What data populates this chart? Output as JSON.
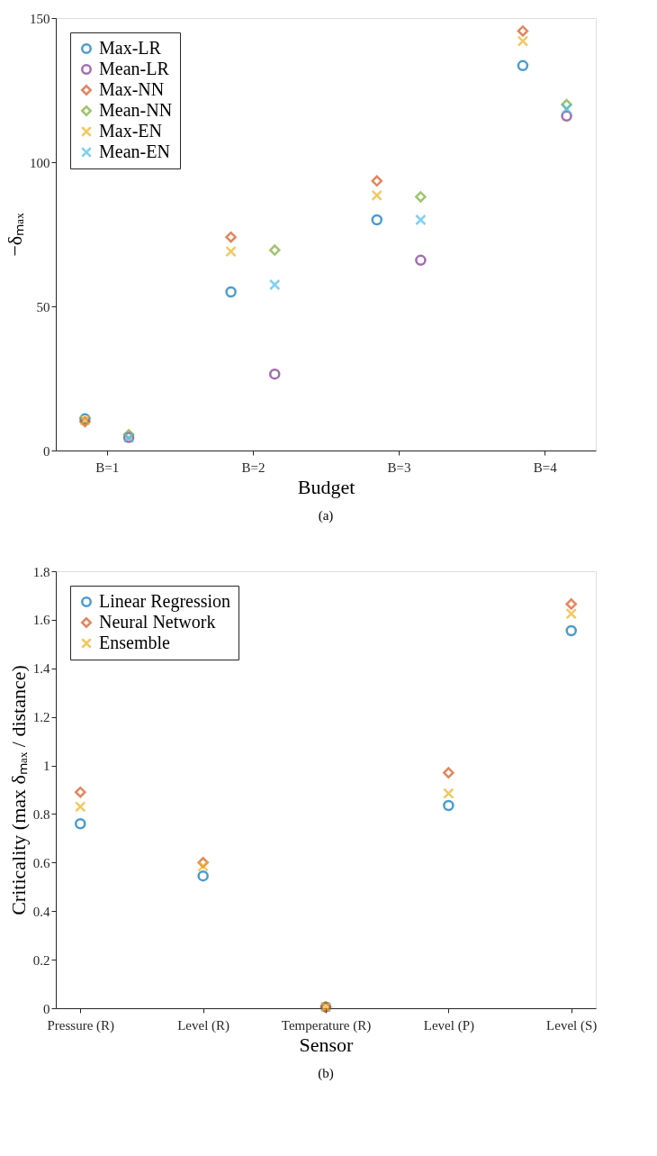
{
  "chart_data": [
    {
      "type": "scatter",
      "xlabel": "Budget",
      "ylabel": "−δₘₐₓ",
      "annotations": [
        "(a)"
      ],
      "categories": [
        "B=1",
        "B=2",
        "B=3",
        "B=4"
      ],
      "ylim": [
        0,
        150
      ],
      "yticks": [
        0,
        50,
        100,
        150
      ],
      "grid": false,
      "legend": "top left",
      "series": [
        {
          "name": "Max-LR",
          "color": "#0072bd",
          "marker": "circle",
          "values": [
            11,
            55,
            80,
            133.5
          ]
        },
        {
          "name": "Mean-LR",
          "color": "#7e2f8e",
          "marker": "circle",
          "values": [
            4.5,
            26.5,
            66,
            116
          ]
        },
        {
          "name": "Max-NN",
          "color": "#d95319",
          "marker": "diamond",
          "values": [
            10,
            74,
            93.5,
            145.5
          ]
        },
        {
          "name": "Mean-NN",
          "color": "#77ac30",
          "marker": "diamond",
          "values": [
            5.5,
            69.5,
            88,
            120
          ]
        },
        {
          "name": "Max-EN",
          "color": "#edb120",
          "marker": "cross",
          "values": [
            10.5,
            69,
            88.5,
            142
          ]
        },
        {
          "name": "Mean-EN",
          "color": "#4dbeee",
          "marker": "cross",
          "values": [
            4.5,
            57.5,
            80,
            118.5
          ]
        }
      ]
    },
    {
      "type": "scatter",
      "xlabel": "Sensor",
      "ylabel": "Criticality (max δₘₐₓ / distance)",
      "annotations": [
        "(b)"
      ],
      "categories": [
        "Pressure (R)",
        "Level (R)",
        "Temperature (R)",
        "Level (P)",
        "Level (S)"
      ],
      "ylim": [
        0,
        1.8
      ],
      "yticks": [
        0,
        0.2,
        0.4,
        0.6,
        0.8,
        1,
        1.2,
        1.4,
        1.6,
        1.8
      ],
      "grid": false,
      "legend": "top left",
      "series": [
        {
          "name": "Linear Regression",
          "color": "#0072bd",
          "marker": "circle",
          "values": [
            0.76,
            0.545,
            0.005,
            0.835,
            1.555
          ]
        },
        {
          "name": "Neural Network",
          "color": "#d95319",
          "marker": "diamond",
          "values": [
            0.89,
            0.6,
            0.005,
            0.97,
            1.665
          ]
        },
        {
          "name": "Ensemble",
          "color": "#edb120",
          "marker": "cross",
          "values": [
            0.83,
            0.585,
            0.005,
            0.885,
            1.625
          ]
        }
      ]
    }
  ]
}
